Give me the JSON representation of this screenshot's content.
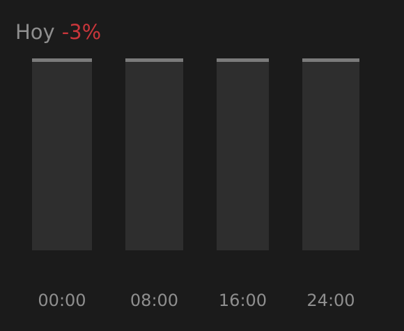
{
  "header": {
    "label": "Hoy",
    "change": "-3%"
  },
  "colors": {
    "background": "#1b1b1b",
    "bar_fill": "#2e2e2e",
    "bar_cap": "#7b7b7b",
    "label_text": "#8e8e8e",
    "negative_change": "#c9363b"
  },
  "chart_data": {
    "type": "bar",
    "categories": [
      "00:00",
      "08:00",
      "16:00",
      "24:00"
    ],
    "series": [
      {
        "values": [
          1,
          1,
          1,
          1
        ]
      }
    ],
    "ylim": [
      0,
      1
    ],
    "grid": false,
    "legend": "none"
  }
}
